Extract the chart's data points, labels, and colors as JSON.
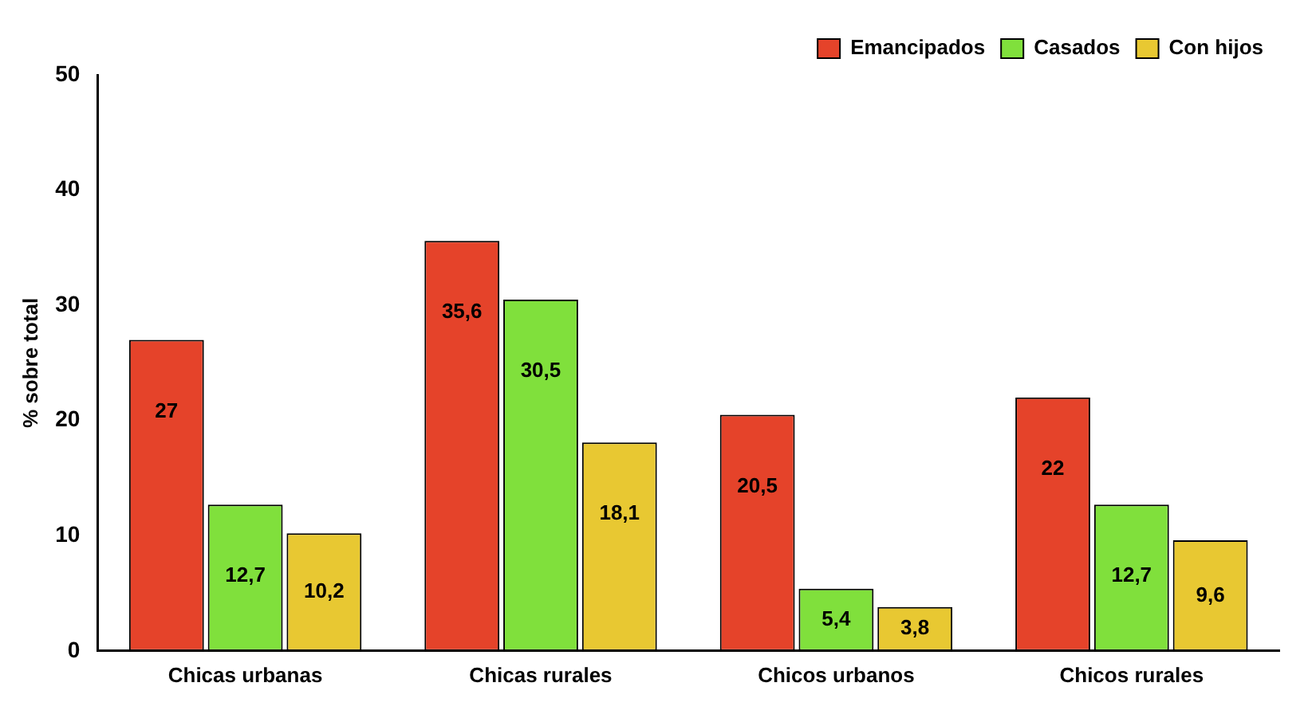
{
  "chart_data": {
    "type": "bar",
    "ylabel": "% sobre total",
    "categories": [
      "Chicas urbanas",
      "Chicas rurales",
      "Chicos urbanos",
      "Chicos rurales"
    ],
    "series": [
      {
        "name": "Emancipados",
        "color": "#e5432a",
        "values": [
          27,
          35.6,
          20.5,
          22
        ],
        "value_labels": [
          "27",
          "35,6",
          "20,5",
          "22"
        ]
      },
      {
        "name": "Casados",
        "color": "#80e03c",
        "values": [
          12.7,
          30.5,
          5.4,
          12.7
        ],
        "value_labels": [
          "12,7",
          "30,5",
          "5,4",
          "12,7"
        ]
      },
      {
        "name": "Con hijos",
        "color": "#e8c832",
        "values": [
          10.2,
          18.1,
          3.8,
          9.6
        ],
        "value_labels": [
          "10,2",
          "18,1",
          "3,8",
          "9,6"
        ]
      }
    ],
    "ylim": [
      0,
      50
    ],
    "yticks": [
      0,
      10,
      20,
      30,
      40,
      50
    ],
    "grid": false,
    "legend": "top right"
  }
}
